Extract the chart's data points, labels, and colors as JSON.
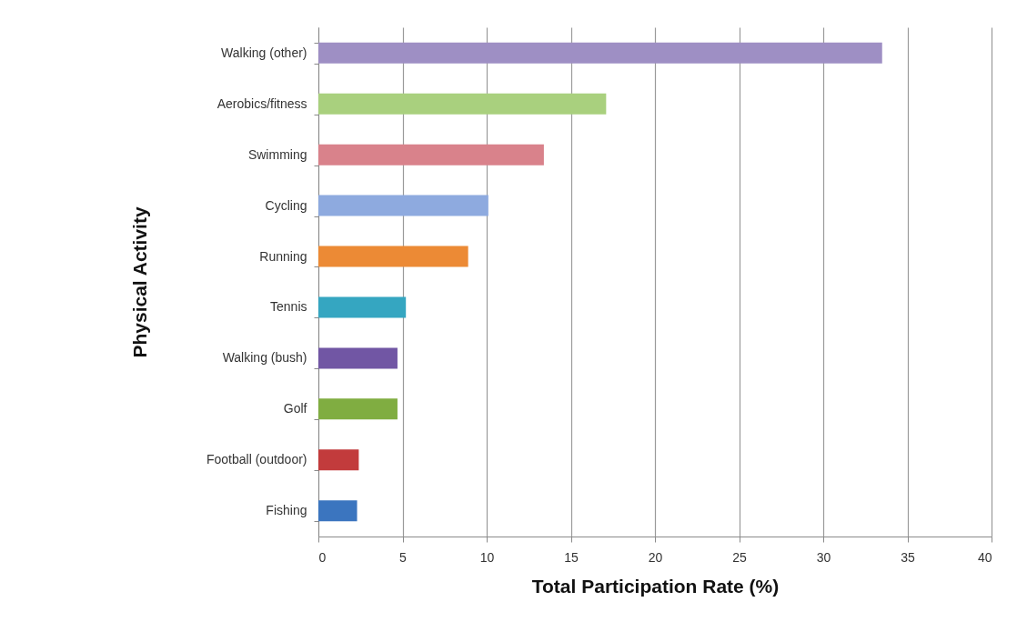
{
  "chart_data": {
    "type": "bar",
    "orientation": "horizontal",
    "xlabel": "Total Participation Rate (%)",
    "ylabel": "Physical Activity",
    "categories": [
      "Walking (other)",
      "Aerobics/fitness",
      "Swimming",
      "Cycling",
      "Running",
      "Tennis",
      "Walking (bush)",
      "Golf",
      "Football (outdoor)",
      "Fishing"
    ],
    "values": [
      33.5,
      17.1,
      13.4,
      10.1,
      8.9,
      5.2,
      4.7,
      4.7,
      2.4,
      2.3
    ],
    "colors": [
      "#9e8fc4",
      "#a9d07e",
      "#d9828b",
      "#8eaadf",
      "#ec8a35",
      "#35a6c1",
      "#7156a4",
      "#80ad41",
      "#c23b3c",
      "#3b75bf"
    ],
    "xlim": [
      0,
      40
    ],
    "xticks": [
      0,
      5,
      10,
      15,
      20,
      25,
      30,
      35,
      40
    ],
    "grid": "x"
  }
}
